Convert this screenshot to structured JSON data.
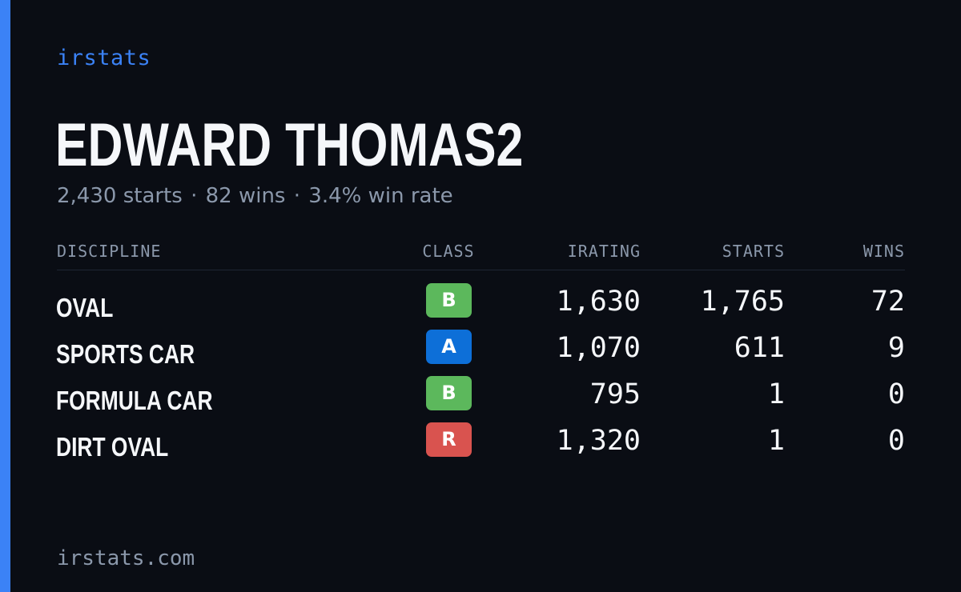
{
  "brand": "irstats",
  "driver": {
    "name": "EDWARD THOMAS2",
    "starts_text": "2,430 starts",
    "wins_text": "82 wins",
    "win_rate_text": "3.4% win rate",
    "separator": "·"
  },
  "table": {
    "headers": {
      "discipline": "DISCIPLINE",
      "class": "CLASS",
      "irating": "IRATING",
      "starts": "STARTS",
      "wins": "WINS"
    },
    "rows": [
      {
        "discipline": "OVAL",
        "class": "B",
        "class_color": "#5cb85c",
        "irating": "1,630",
        "starts": "1,765",
        "wins": "72"
      },
      {
        "discipline": "SPORTS CAR",
        "class": "A",
        "class_color": "#0d6fd8",
        "irating": "1,070",
        "starts": "611",
        "wins": "9"
      },
      {
        "discipline": "FORMULA CAR",
        "class": "B",
        "class_color": "#5cb85c",
        "irating": "795",
        "starts": "1",
        "wins": "0"
      },
      {
        "discipline": "DIRT OVAL",
        "class": "R",
        "class_color": "#d9534f",
        "irating": "1,320",
        "starts": "1",
        "wins": "0"
      }
    ]
  },
  "footer": "irstats.com",
  "colors": {
    "background": "#0a0d14",
    "accent": "#3b82f6",
    "text": "#f5f7fa",
    "muted": "#8b98ab"
  }
}
